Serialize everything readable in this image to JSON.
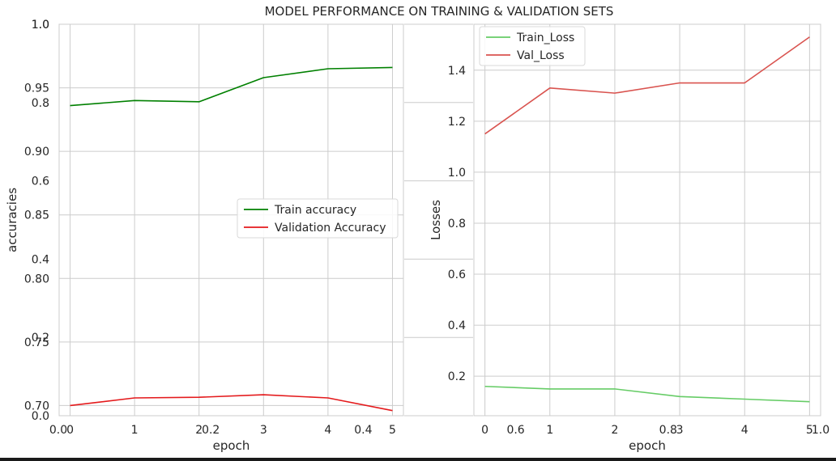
{
  "figure": {
    "title": "MODEL PERFORMANCE ON TRAINING & VALIDATION SETS",
    "background_axes": {
      "xticks": [
        "0.0",
        "0.2",
        "0.4",
        "0.6",
        "0.8",
        "1.0"
      ],
      "yticks": [
        "0.0",
        "0.2",
        "0.4",
        "0.6",
        "0.8",
        "1.0"
      ]
    }
  },
  "chart_data": [
    {
      "type": "line",
      "xlabel": "epoch",
      "ylabel": "accuracies",
      "xlim": [
        -0.17,
        5.17
      ],
      "ylim": [
        0.692,
        1.0
      ],
      "xticks": [
        0,
        1,
        2,
        3,
        4,
        5
      ],
      "yticks": [
        0.7,
        0.75,
        0.8,
        0.85,
        0.9,
        0.95,
        1.0
      ],
      "ytick_labels": [
        "0.70",
        "0.75",
        "0.80",
        "0.85",
        "0.90",
        "0.95",
        "1.0"
      ],
      "grid": true,
      "legend": "center-right",
      "x": [
        0,
        1,
        2,
        3,
        4,
        5
      ],
      "series": [
        {
          "name": "Train accuracy",
          "color": "#008000",
          "values": [
            0.936,
            0.94,
            0.939,
            0.958,
            0.965,
            0.966
          ]
        },
        {
          "name": "Validation Accuracy",
          "color": "#e41a1c",
          "values": [
            0.7,
            0.706,
            0.7065,
            0.7085,
            0.706,
            0.696
          ]
        }
      ]
    },
    {
      "type": "line",
      "xlabel": "epoch",
      "ylabel": "Losses",
      "xlim": [
        -0.17,
        5.17
      ],
      "ylim": [
        0.045,
        1.58
      ],
      "xticks": [
        0,
        1,
        2,
        3,
        4,
        5
      ],
      "yticks": [
        0.2,
        0.4,
        0.6,
        0.8,
        1.0,
        1.2,
        1.4
      ],
      "ytick_labels": [
        "0.2",
        "0.4",
        "0.6",
        "0.8",
        "1.0",
        "1.2",
        "1.4"
      ],
      "grid": true,
      "legend": "top-left",
      "x": [
        0,
        1,
        2,
        3,
        4,
        5
      ],
      "series": [
        {
          "name": "Train_Loss",
          "color": "#66cc66",
          "values": [
            0.16,
            0.15,
            0.15,
            0.12,
            0.11,
            0.1
          ]
        },
        {
          "name": "Val_Loss",
          "color": "#d9534f",
          "values": [
            1.15,
            1.33,
            1.31,
            1.35,
            1.35,
            1.53
          ]
        }
      ]
    }
  ]
}
